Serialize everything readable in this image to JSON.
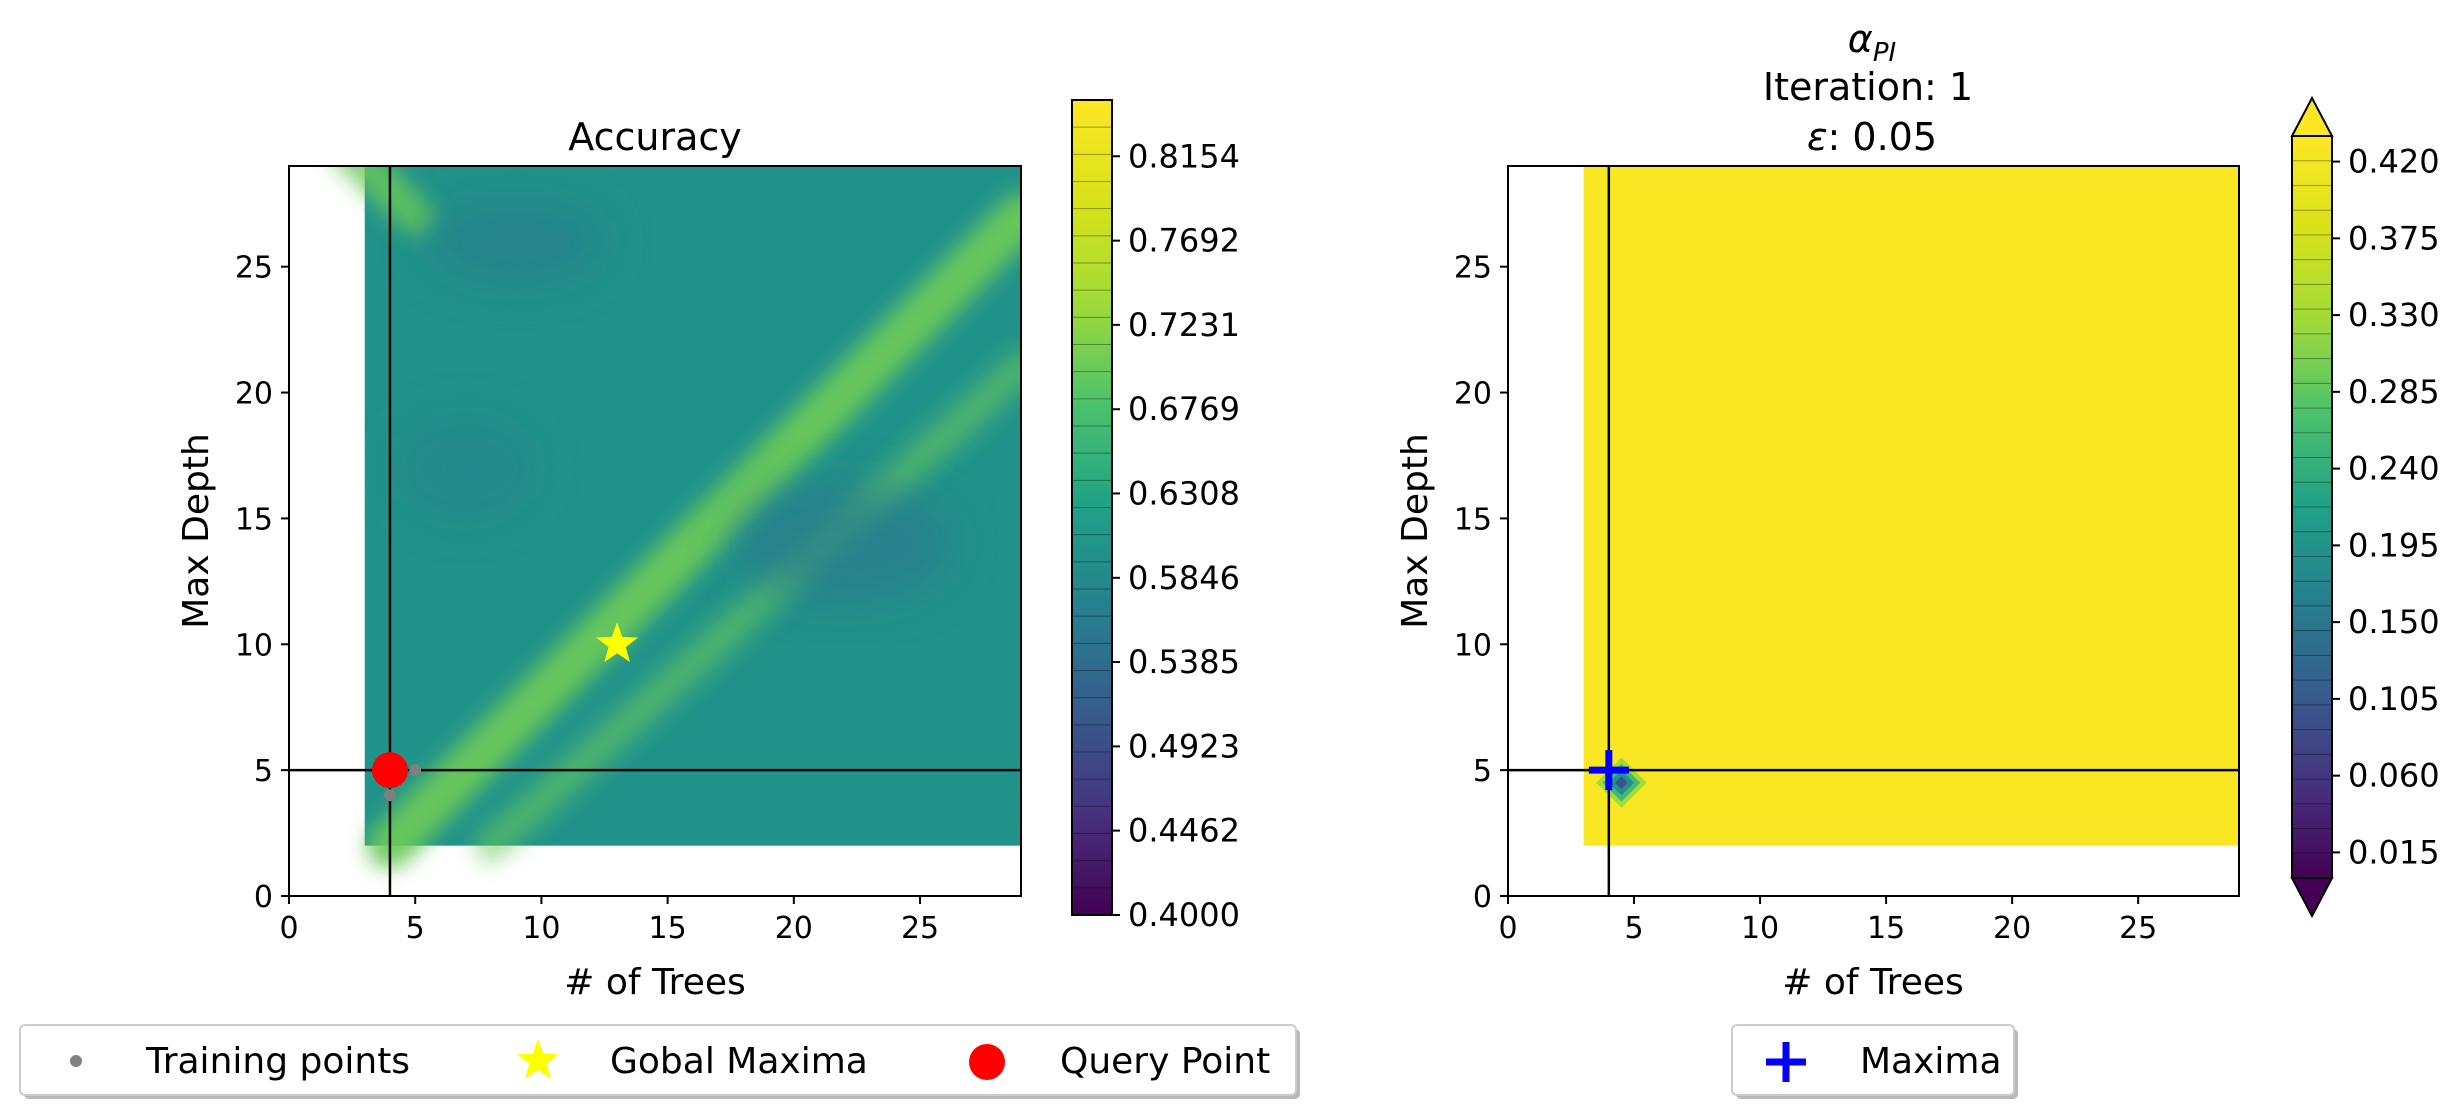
{
  "chart_data": [
    {
      "type": "heatmap",
      "title": "Accuracy",
      "xlabel": "# of Trees",
      "ylabel": "Max Depth",
      "xlim": [
        0,
        29
      ],
      "ylim": [
        0,
        29
      ],
      "data_extent": {
        "x": [
          3,
          29
        ],
        "y": [
          2,
          29
        ]
      },
      "xticks": [
        0,
        5,
        10,
        15,
        20,
        25
      ],
      "yticks": [
        0,
        5,
        10,
        15,
        20,
        25
      ],
      "colorbar": {
        "min": 0.4,
        "max": 0.8462,
        "ticks": [
          0.4,
          0.4462,
          0.4923,
          0.5385,
          0.5846,
          0.6308,
          0.6769,
          0.7231,
          0.7692,
          0.8154
        ],
        "tick_labels": [
          "0.4000",
          "0.4462",
          "0.4923",
          "0.5385",
          "0.5846",
          "0.6308",
          "0.6769",
          "0.7231",
          "0.7692",
          "0.8154"
        ]
      },
      "background_value": 0.6,
      "ridge_value": 0.7,
      "crosshair": {
        "x": 4,
        "y": 5
      },
      "training_points": [
        [
          4,
          4
        ],
        [
          4,
          5
        ],
        [
          5,
          5
        ]
      ],
      "global_maxima": [
        13,
        10
      ],
      "query_point": [
        4,
        5
      ]
    },
    {
      "type": "heatmap",
      "title": "Iteration: 1",
      "title_symbol_main": "α",
      "title_symbol_sub": "PI",
      "title_eps_symbol": "ε",
      "title_eps_value": ": 0.05",
      "xlabel": "# of Trees",
      "ylabel": "Max Depth",
      "xlim": [
        0,
        29
      ],
      "ylim": [
        0,
        29
      ],
      "data_extent": {
        "x": [
          3,
          29
        ],
        "y": [
          2,
          29
        ]
      },
      "xticks": [
        0,
        5,
        10,
        15,
        20,
        25
      ],
      "yticks": [
        0,
        5,
        10,
        15,
        20,
        25
      ],
      "colorbar": {
        "min": 0.0,
        "max": 0.435,
        "extend": "both",
        "ticks": [
          0.015,
          0.06,
          0.105,
          0.15,
          0.195,
          0.24,
          0.285,
          0.33,
          0.375,
          0.42
        ],
        "tick_labels": [
          "0.015",
          "0.060",
          "0.105",
          "0.150",
          "0.195",
          "0.240",
          "0.285",
          "0.330",
          "0.375",
          "0.420"
        ]
      },
      "background_value": 0.43,
      "dip_center": [
        4.5,
        4.5
      ],
      "crosshair": {
        "x": 4,
        "y": 5
      },
      "maxima": [
        4,
        5
      ]
    }
  ],
  "legends": {
    "left": [
      {
        "label": "Training points",
        "marker": "gray-dot",
        "color": "#808080"
      },
      {
        "label": "Gobal Maxima",
        "marker": "star",
        "color": "#ffff00"
      },
      {
        "label": "Query Point",
        "marker": "red-circle",
        "color": "#ff0000"
      }
    ],
    "right": [
      {
        "label": "Maxima",
        "marker": "plus",
        "color": "#0000ff"
      }
    ]
  },
  "colors": {
    "viridis_low": "#440154",
    "viridis_high": "#fde725"
  }
}
